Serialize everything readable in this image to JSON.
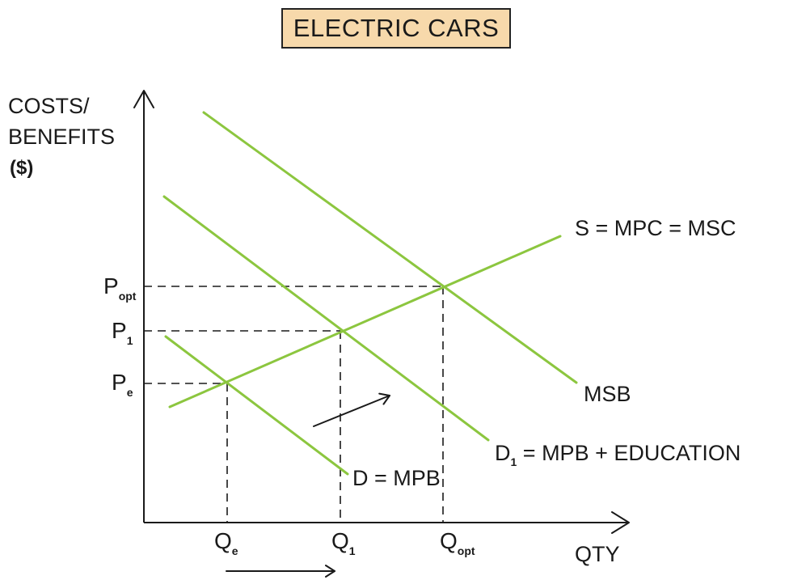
{
  "title": "ELECTRIC CARS",
  "axes": {
    "y_label": [
      "COSTS/",
      "BENEFITS",
      "($)"
    ],
    "x_label": "QTY"
  },
  "price_labels": {
    "popt": {
      "main": "P",
      "sub": "opt"
    },
    "p1": {
      "main": "P",
      "sub": "1"
    },
    "pe": {
      "main": "P",
      "sub": "e"
    }
  },
  "quantity_labels": {
    "qe": {
      "main": "Q",
      "sub": "e"
    },
    "q1": {
      "main": "Q",
      "sub": "1"
    },
    "qopt": {
      "main": "Q",
      "sub": "opt"
    }
  },
  "curves": {
    "supply": "S = MPC = MSC",
    "msb": "MSB",
    "d1": {
      "main": "D",
      "sub": "1",
      "rest": " = MPB + EDUCATION"
    },
    "d": "D = MPB"
  },
  "colors": {
    "curve": "#8cc63f",
    "axis": "#1a1a1a",
    "title_fill": "#f7d9ab"
  }
}
